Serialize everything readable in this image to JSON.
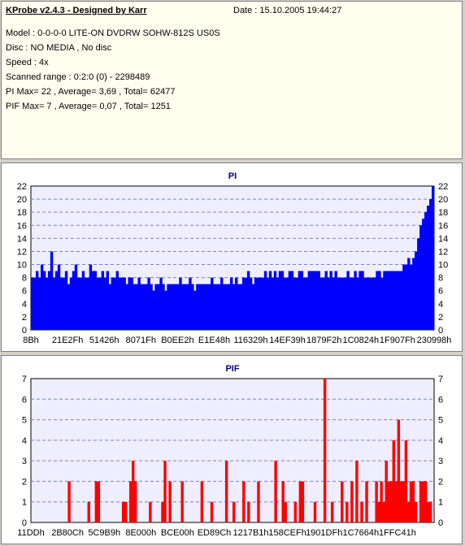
{
  "header": {
    "title": "KProbe v2.4.3 - Designed by Karr",
    "date": "Date : 15.10.2005 19:44:27",
    "lines": [
      "Model : 0-0-0-0 LITE-ON DVDRW SOHW-812S  US0S",
      "Disc : NO MEDIA , No disc",
      "Speed : 4x",
      "Scanned range : 0:2:0 (0) - 2298489",
      "PI Max= 22 , Average= 3,69 , Total= 62477",
      "PIF Max= 7 , Average= 0,07 , Total= 1251"
    ]
  },
  "colors": {
    "pi": "#0000ff",
    "pif": "#ff0000",
    "plot_bg": "#eeeeff",
    "title": "#000080"
  },
  "chart_data": [
    {
      "type": "bar",
      "title": "PI",
      "ylim": [
        0,
        22
      ],
      "yticks": [
        0,
        2,
        4,
        6,
        8,
        10,
        12,
        14,
        16,
        18,
        20,
        22
      ],
      "xticks": [
        "8Bh",
        "21E2Fh",
        "51426h",
        "8071Fh",
        "B0EE2h",
        "E1E48h",
        "116329h",
        "14EF39h",
        "1879F2h",
        "1C0824h",
        "1F907Fh",
        "230998h"
      ],
      "grid": true,
      "series": [
        {
          "values": [
            8,
            8,
            9,
            8,
            10,
            9,
            8,
            9,
            12,
            8,
            9,
            10,
            8,
            8,
            9,
            7,
            8,
            9,
            10,
            8,
            8,
            9,
            8,
            8,
            10,
            9,
            9,
            8,
            8,
            9,
            8,
            9,
            7,
            8,
            8,
            9,
            8,
            8,
            8,
            7,
            8,
            8,
            7,
            7,
            8,
            7,
            7,
            7,
            8,
            7,
            6,
            7,
            7,
            8,
            7,
            6,
            7,
            7,
            7,
            7,
            7,
            8,
            7,
            7,
            7,
            8,
            7,
            6,
            7,
            7,
            7,
            7,
            7,
            7,
            8,
            7,
            7,
            7,
            8,
            7,
            7,
            7,
            8,
            7,
            8,
            7,
            7,
            8,
            8,
            9,
            8,
            7,
            8,
            8,
            8,
            8,
            9,
            8,
            9,
            8,
            9,
            8,
            9,
            9,
            8,
            8,
            9,
            9,
            8,
            8,
            9,
            9,
            8,
            8,
            9,
            9,
            9,
            9,
            9,
            8,
            8,
            9,
            8,
            9,
            8,
            9,
            8,
            8,
            8,
            8,
            9,
            8,
            8,
            9,
            8,
            9,
            9,
            8,
            8,
            8,
            8,
            8,
            9,
            9,
            8,
            9,
            9,
            9,
            9,
            9,
            9,
            9,
            9,
            10,
            10,
            11,
            10,
            11,
            12,
            14,
            16,
            17,
            18,
            19,
            20,
            22
          ],
          "name": ""
        }
      ]
    },
    {
      "type": "bar",
      "title": "PIF",
      "ylim": [
        0,
        7
      ],
      "yticks": [
        0,
        1,
        2,
        3,
        4,
        5,
        6,
        7
      ],
      "xticks": [
        "11DDh",
        "2B80Ch",
        "5C9B9h",
        "8E000h",
        "BCE00h",
        "ED89Ch",
        "1217B1h",
        "158CEFh",
        "1901DFh",
        "1C7664h",
        "1FFC41h"
      ],
      "grid": true,
      "series": [
        {
          "values": [
            0,
            0,
            0,
            0,
            0,
            0,
            0,
            0,
            0,
            0,
            0,
            0,
            0,
            0,
            0,
            2,
            0,
            0,
            0,
            0,
            0,
            0,
            0,
            1,
            0,
            0,
            2,
            2,
            0,
            0,
            0,
            0,
            0,
            0,
            0,
            0,
            0,
            1,
            1,
            0,
            2,
            3,
            2,
            0,
            0,
            0,
            0,
            0,
            1,
            0,
            0,
            0,
            0,
            1,
            3,
            0,
            2,
            0,
            0,
            0,
            0,
            2,
            0,
            0,
            0,
            0,
            0,
            0,
            0,
            2,
            0,
            0,
            0,
            1,
            0,
            0,
            0,
            0,
            0,
            3,
            0,
            0,
            1,
            0,
            0,
            0,
            2,
            0,
            1,
            0,
            0,
            0,
            2,
            0,
            0,
            0,
            0,
            0,
            0,
            3,
            0,
            0,
            2,
            1,
            0,
            0,
            0,
            1,
            0,
            2,
            2,
            0,
            0,
            0,
            0,
            1,
            0,
            0,
            0,
            7,
            0,
            0,
            1,
            0,
            0,
            0,
            2,
            0,
            1,
            0,
            2,
            0,
            3,
            0,
            1,
            0,
            2,
            0,
            0,
            0,
            2,
            1,
            2,
            1,
            3,
            2,
            2,
            4,
            2,
            5,
            2,
            2,
            4,
            1,
            2,
            2,
            1,
            0,
            2,
            2,
            2,
            1,
            1,
            0
          ],
          "name": ""
        }
      ]
    }
  ]
}
